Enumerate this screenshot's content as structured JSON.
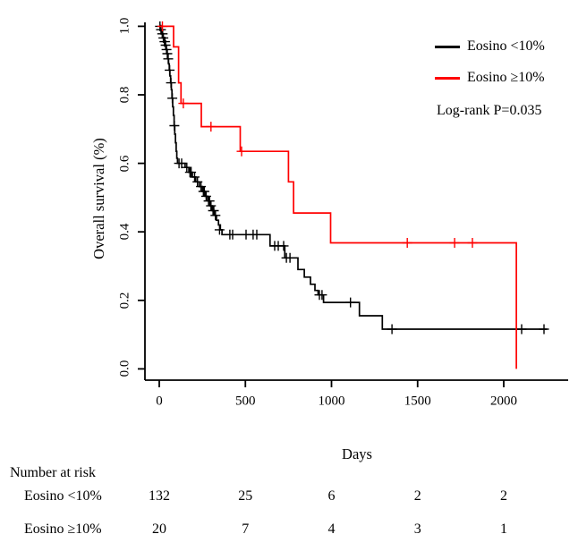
{
  "chart_data": {
    "type": "line",
    "subtype": "kaplan-meier-survival",
    "title": "",
    "xlabel": "Days",
    "ylabel": "Overall survival (%)",
    "xlim": [
      0,
      2300
    ],
    "ylim": [
      0.0,
      1.0
    ],
    "xticks": [
      "0",
      "500",
      "1000",
      "1500",
      "2000"
    ],
    "yticks": [
      "0.0",
      "0.2",
      "0.4",
      "0.6",
      "0.8",
      "1.0"
    ],
    "grid": "off",
    "legend_position": "top-right",
    "annotation": "Log-rank P=0.035",
    "legend": [
      {
        "label": "Eosino <10%",
        "color": "#000000"
      },
      {
        "label": "Eosino ≥10%",
        "color": "#ff0000"
      }
    ],
    "series": [
      {
        "name": "Eosino <10%",
        "color": "#000000",
        "steps": [
          [
            0,
            1.0
          ],
          [
            8,
            0.99
          ],
          [
            15,
            0.978
          ],
          [
            22,
            0.966
          ],
          [
            28,
            0.955
          ],
          [
            34,
            0.945
          ],
          [
            40,
            0.932
          ],
          [
            45,
            0.92
          ],
          [
            50,
            0.905
          ],
          [
            54,
            0.89
          ],
          [
            58,
            0.872
          ],
          [
            62,
            0.855
          ],
          [
            66,
            0.835
          ],
          [
            70,
            0.815
          ],
          [
            74,
            0.79
          ],
          [
            78,
            0.765
          ],
          [
            82,
            0.74
          ],
          [
            86,
            0.71
          ],
          [
            90,
            0.685
          ],
          [
            94,
            0.66
          ],
          [
            98,
            0.635
          ],
          [
            102,
            0.615
          ],
          [
            106,
            0.6
          ],
          [
            150,
            0.588
          ],
          [
            172,
            0.574
          ],
          [
            192,
            0.56
          ],
          [
            212,
            0.546
          ],
          [
            232,
            0.532
          ],
          [
            250,
            0.518
          ],
          [
            266,
            0.504
          ],
          [
            281,
            0.49
          ],
          [
            295,
            0.476
          ],
          [
            308,
            0.462
          ],
          [
            320,
            0.448
          ],
          [
            332,
            0.434
          ],
          [
            344,
            0.42
          ],
          [
            355,
            0.406
          ],
          [
            364,
            0.392
          ],
          [
            643,
            0.359
          ],
          [
            729,
            0.324
          ],
          [
            805,
            0.29
          ],
          [
            842,
            0.268
          ],
          [
            878,
            0.247
          ],
          [
            904,
            0.229
          ],
          [
            922,
            0.216
          ],
          [
            954,
            0.194
          ],
          [
            1162,
            0.155
          ],
          [
            1295,
            0.116
          ],
          [
            2250,
            0.116
          ]
        ],
        "censors": [
          [
            4,
            1.0
          ],
          [
            10,
            0.99
          ],
          [
            17,
            0.978
          ],
          [
            20,
            0.978
          ],
          [
            24,
            0.966
          ],
          [
            30,
            0.955
          ],
          [
            33,
            0.955
          ],
          [
            37,
            0.945
          ],
          [
            42,
            0.932
          ],
          [
            47,
            0.92
          ],
          [
            52,
            0.905
          ],
          [
            60,
            0.872
          ],
          [
            68,
            0.835
          ],
          [
            76,
            0.79
          ],
          [
            88,
            0.71
          ],
          [
            115,
            0.6
          ],
          [
            130,
            0.6
          ],
          [
            160,
            0.588
          ],
          [
            178,
            0.574
          ],
          [
            185,
            0.574
          ],
          [
            205,
            0.56
          ],
          [
            222,
            0.546
          ],
          [
            242,
            0.532
          ],
          [
            256,
            0.518
          ],
          [
            262,
            0.518
          ],
          [
            272,
            0.504
          ],
          [
            286,
            0.49
          ],
          [
            292,
            0.49
          ],
          [
            300,
            0.476
          ],
          [
            312,
            0.462
          ],
          [
            317,
            0.462
          ],
          [
            326,
            0.448
          ],
          [
            350,
            0.406
          ],
          [
            410,
            0.392
          ],
          [
            426,
            0.392
          ],
          [
            504,
            0.392
          ],
          [
            545,
            0.392
          ],
          [
            566,
            0.392
          ],
          [
            670,
            0.359
          ],
          [
            691,
            0.359
          ],
          [
            722,
            0.359
          ],
          [
            738,
            0.324
          ],
          [
            759,
            0.324
          ],
          [
            930,
            0.216
          ],
          [
            945,
            0.216
          ],
          [
            1110,
            0.194
          ],
          [
            1351,
            0.116
          ],
          [
            2104,
            0.116
          ],
          [
            2234,
            0.116
          ]
        ]
      },
      {
        "name": "Eosino ≥10%",
        "color": "#ff0000",
        "steps": [
          [
            0,
            1.0
          ],
          [
            83,
            0.94
          ],
          [
            112,
            0.835
          ],
          [
            126,
            0.775
          ],
          [
            244,
            0.707
          ],
          [
            470,
            0.635
          ],
          [
            750,
            0.546
          ],
          [
            780,
            0.455
          ],
          [
            995,
            0.368
          ],
          [
            2073,
            0.0
          ]
        ],
        "censors": [
          [
            18,
            1.0
          ],
          [
            140,
            0.775
          ],
          [
            300,
            0.707
          ],
          [
            478,
            0.635
          ],
          [
            1440,
            0.368
          ],
          [
            1715,
            0.368
          ],
          [
            1818,
            0.368
          ]
        ]
      }
    ]
  },
  "risk_table": {
    "title": "Number at risk",
    "time_points": [
      0,
      500,
      1000,
      1500,
      2000
    ],
    "rows": [
      {
        "label": "Eosino <10%",
        "counts": [
          "132",
          "25",
          "6",
          "2",
          "2"
        ]
      },
      {
        "label": "Eosino ≥10%",
        "counts": [
          "20",
          "7",
          "4",
          "3",
          "1"
        ]
      }
    ]
  }
}
